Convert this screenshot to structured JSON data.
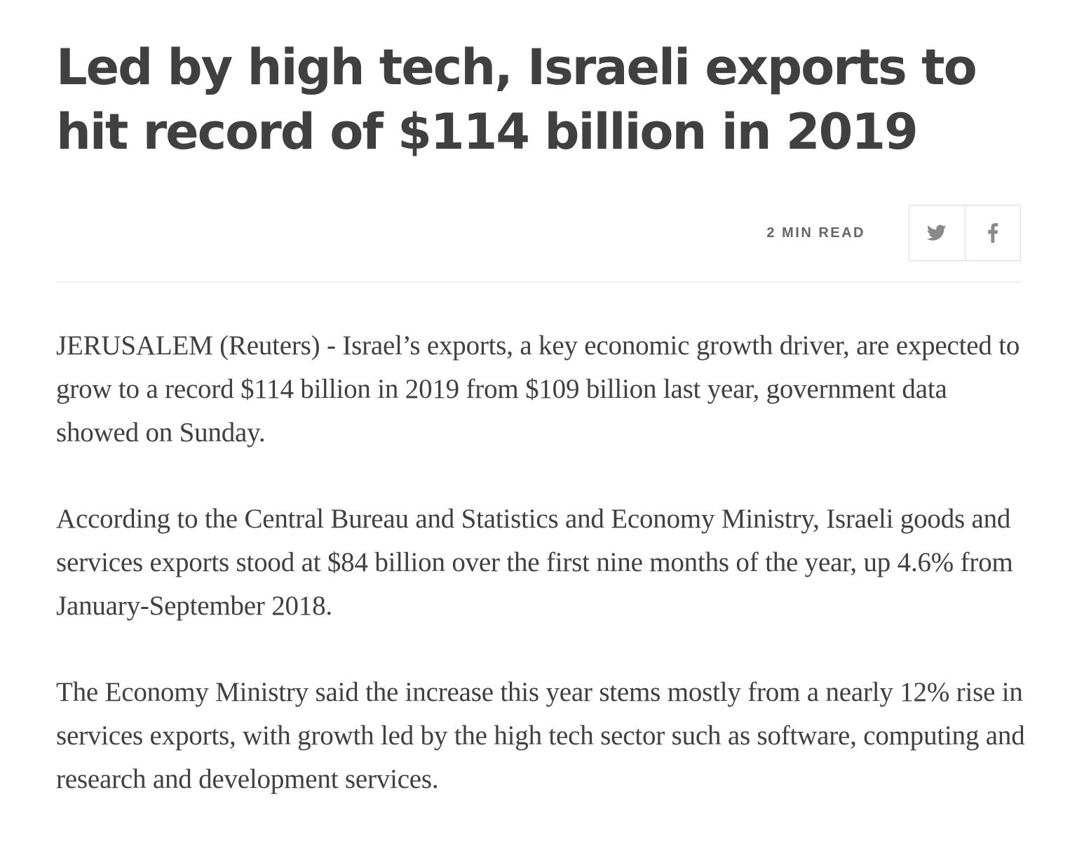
{
  "article": {
    "headline": "Led by high tech, Israeli exports to hit record of $114 billion in 2019",
    "read_time": "2 MIN READ",
    "share": {
      "twitter_icon": "twitter-icon",
      "facebook_icon": "facebook-icon"
    },
    "paragraphs": [
      "JERUSALEM (Reuters) - Israel’s exports, a key economic growth driver, are expected to grow to a record $114 billion in 2019 from $109 billion last year, government data showed on Sunday.",
      "According to the Central Bureau and Statistics and Economy Ministry, Israeli goods and services exports stood at $84 billion over the first nine months of the year, up 4.6% from January-September 2018.",
      "The Economy Ministry said the increase this year stems mostly from a nearly 12% rise in services exports, with growth led by the high tech sector such as software, computing and research and development services."
    ]
  },
  "colors": {
    "text": "#404040",
    "meta": "#666666",
    "border": "#dcdcdc",
    "rule": "#ececec"
  }
}
